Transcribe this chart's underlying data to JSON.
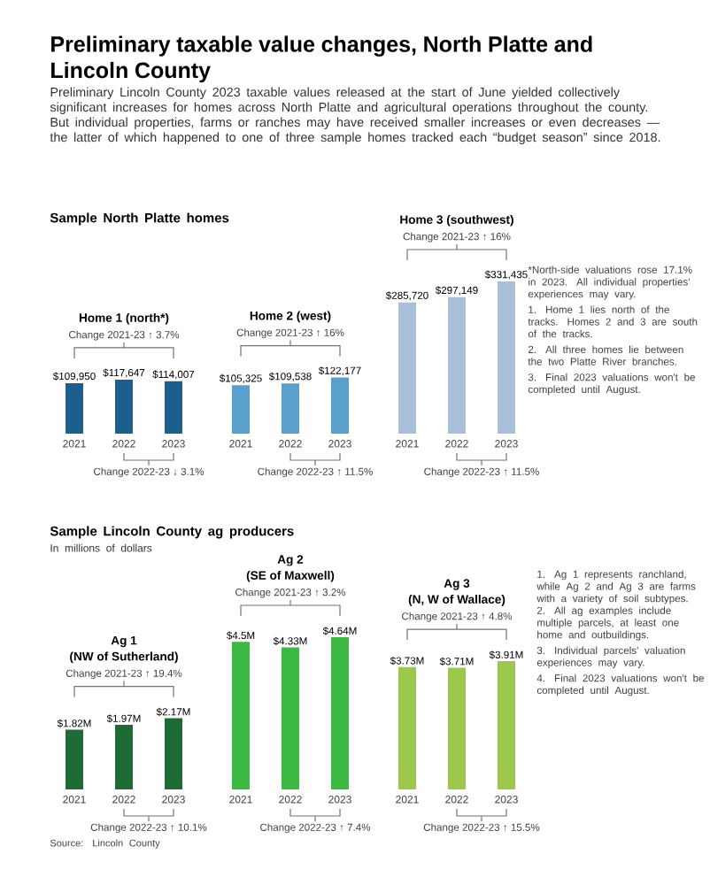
{
  "chart_data": [
    {
      "type": "other",
      "title": "Preliminary taxable value changes, North Platte and Lincoln County",
      "subtitle": "Preliminary Lincoln County 2023 taxable values released at the start of June yielded collectively significant increases for homes across North Platte and agricultural operations throughout the county. But individual properties, farms or ranches may have received smaller increases or even decreases — the latter of which happened to one of three sample homes tracked each “budget season” since 2018."
    },
    {
      "type": "other",
      "title": "Sample North Platte homes"
    },
    {
      "type": "bar",
      "title": "Home 1 (north*)",
      "categories": [
        "2021",
        "2022",
        "2023"
      ],
      "values": [
        109950,
        117647,
        114007
      ],
      "value_labels": [
        "$109,950",
        "$117,647",
        "$114,007"
      ],
      "color": "#1d5f8c",
      "annotations": [
        "Change 2021-23 ↑ 3.7%",
        "Change 2022-23 ↓ 3.1%"
      ]
    },
    {
      "type": "bar",
      "title": "Home 2 (west)",
      "categories": [
        "2021",
        "2022",
        "2023"
      ],
      "values": [
        105325,
        109538,
        122177
      ],
      "value_labels": [
        "$105,325",
        "$109,538",
        "$122,177"
      ],
      "color": "#5b9fcd",
      "annotations": [
        "Change 2021-23 ↑ 16%",
        "Change 2022-23 ↑ 11.5%"
      ]
    },
    {
      "type": "bar",
      "title": "Home 3 (southwest)",
      "categories": [
        "2021",
        "2022",
        "2023"
      ],
      "values": [
        285720,
        297149,
        331435
      ],
      "value_labels": [
        "$285,720",
        "$297,149",
        "$331,435"
      ],
      "color": "#a8bfd8",
      "annotations": [
        "Change 2021-23 ↑ 16%",
        "Change 2022-23 ↑ 11.5%"
      ]
    },
    {
      "type": "other",
      "annotations": [
        "*North-side valuations rose 17.1% in 2023. All individual properties' experiences may vary.",
        "1. Home 1 lies north of the tracks. Homes 2 and 3 are south of the tracks.",
        "2. All three homes lie between the two Platte River branches.",
        "3. Final 2023 valuations won't be completed until August."
      ]
    },
    {
      "type": "other",
      "title": "Sample Lincoln County ag producers",
      "subtitle": "In millions of dollars"
    },
    {
      "type": "bar",
      "title": "Ag 1",
      "subtitle": "(NW of Sutherland)",
      "categories": [
        "2021",
        "2022",
        "2023"
      ],
      "values": [
        1.82,
        1.97,
        2.17
      ],
      "value_labels": [
        "$1.82M",
        "$1.97M",
        "$2.17M"
      ],
      "color": "#1f6b36",
      "annotations": [
        "Change 2021-23 ↑ 19.4%",
        "Change 2022-23 ↑ 10.1%"
      ]
    },
    {
      "type": "bar",
      "title": "Ag 2",
      "subtitle": "(SE of Maxwell)",
      "categories": [
        "2021",
        "2022",
        "2023"
      ],
      "values": [
        4.5,
        4.33,
        4.64
      ],
      "value_labels": [
        "$4.5M",
        "$4.33M",
        "$4.64M"
      ],
      "color": "#3cb943",
      "annotations": [
        "Change 2021-23 ↑ 3.2%",
        "Change 2022-23 ↑ 7.4%"
      ]
    },
    {
      "type": "bar",
      "title": "Ag 3",
      "subtitle": "(N, W of Wallace)",
      "categories": [
        "2021",
        "2022",
        "2023"
      ],
      "values": [
        3.73,
        3.71,
        3.91
      ],
      "value_labels": [
        "$3.73M",
        "$3.71M",
        "$3.91M"
      ],
      "color": "#9cc84b",
      "annotations": [
        "Change 2021-23 ↑ 4.8%",
        "Change 2022-23 ↑ 15.5%"
      ]
    },
    {
      "type": "other",
      "annotations": [
        "1. Ag 1 represents ranchland, while Ag 2 and Ag 3 are farms with a variety of soil subtypes. 2. All ag examples include multiple parcels, at least one home and outbuildings.",
        "3. Individual parcels' valuation experiences may vary.",
        "4. Final 2023 valuations won't be completed until August."
      ]
    },
    {
      "type": "other",
      "annotations": [
        "Source: Lincoln County"
      ]
    }
  ]
}
